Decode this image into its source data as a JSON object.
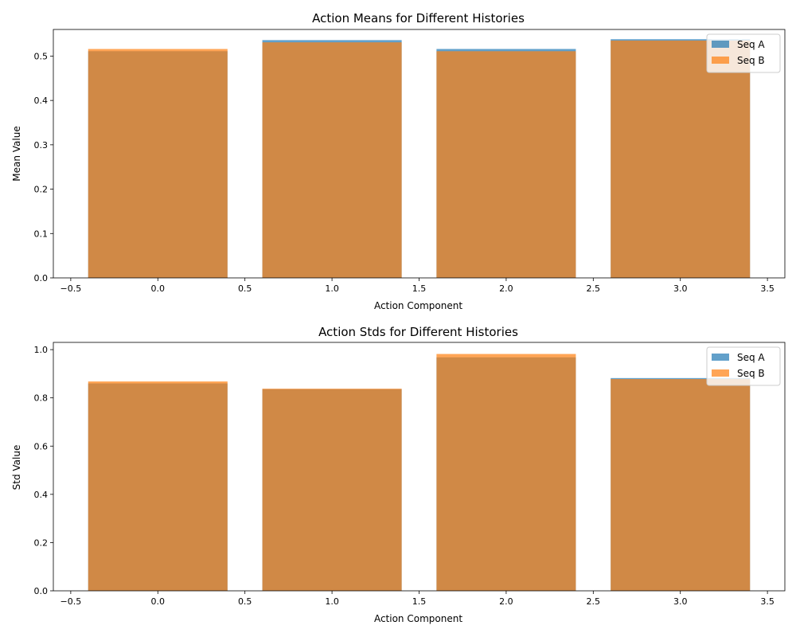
{
  "chart_data": [
    {
      "type": "bar",
      "title": "Action Means for Different Histories",
      "xlabel": "Action Component",
      "ylabel": "Mean Value",
      "categories": [
        0,
        1,
        2,
        3
      ],
      "bar_width": 0.8,
      "xlim": [
        -0.6,
        3.6
      ],
      "ylim": [
        0,
        0.56
      ],
      "xticks": [
        -0.5,
        0.0,
        0.5,
        1.0,
        1.5,
        2.0,
        2.5,
        3.0,
        3.5
      ],
      "xtick_labels": [
        "−0.5",
        "0.0",
        "0.5",
        "1.0",
        "1.5",
        "2.0",
        "2.5",
        "3.0",
        "3.5"
      ],
      "yticks": [
        0,
        0.1,
        0.2,
        0.3,
        0.4,
        0.5
      ],
      "ytick_labels": [
        "0.0",
        "0.1",
        "0.2",
        "0.3",
        "0.4",
        "0.5"
      ],
      "grid": false,
      "legend_position": "top-right",
      "series": [
        {
          "name": "Seq A",
          "values": [
            0.511,
            0.536,
            0.516,
            0.538
          ],
          "color": "#1f77b4",
          "opacity": 0.7
        },
        {
          "name": "Seq B",
          "values": [
            0.516,
            0.531,
            0.511,
            0.535
          ],
          "color": "#ff7f0e",
          "opacity": 0.7
        }
      ]
    },
    {
      "type": "bar",
      "title": "Action Stds for Different Histories",
      "xlabel": "Action Component",
      "ylabel": "Std Value",
      "categories": [
        0,
        1,
        2,
        3
      ],
      "bar_width": 0.8,
      "xlim": [
        -0.6,
        3.6
      ],
      "ylim": [
        0,
        1.03
      ],
      "xticks": [
        -0.5,
        0.0,
        0.5,
        1.0,
        1.5,
        2.0,
        2.5,
        3.0,
        3.5
      ],
      "xtick_labels": [
        "−0.5",
        "0.0",
        "0.5",
        "1.0",
        "1.5",
        "2.0",
        "2.5",
        "3.0",
        "3.5"
      ],
      "yticks": [
        0,
        0.2,
        0.4,
        0.6,
        0.8,
        1.0
      ],
      "ytick_labels": [
        "0.0",
        "0.2",
        "0.4",
        "0.6",
        "0.8",
        "1.0"
      ],
      "grid": false,
      "legend_position": "top-right",
      "series": [
        {
          "name": "Seq A",
          "values": [
            0.86,
            0.836,
            0.968,
            0.882
          ],
          "color": "#1f77b4",
          "opacity": 0.7
        },
        {
          "name": "Seq B",
          "values": [
            0.868,
            0.838,
            0.982,
            0.878
          ],
          "color": "#ff7f0e",
          "opacity": 0.7
        }
      ]
    }
  ]
}
